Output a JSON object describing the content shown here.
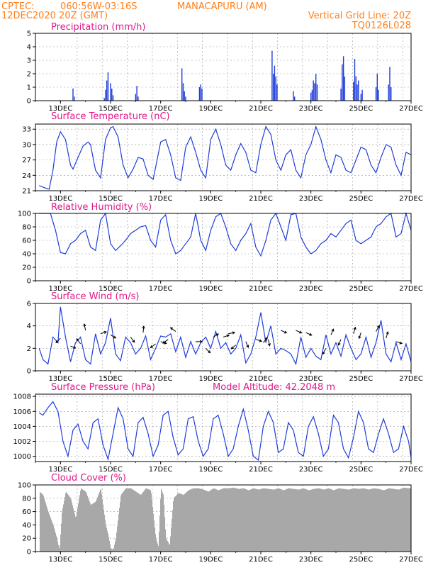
{
  "header": {
    "line1_left": "CPTEC:",
    "line1_coords": "060:56W-03:16S",
    "line1_place": "MANACAPURU (AM)",
    "line2_left": "12DEC2020 20Z (GMT)",
    "line1_right": "Vertical Grid Line: 20Z",
    "line2_right": "TQ0126L028"
  },
  "x_tick_labels": [
    "13DEC",
    "15DEC",
    "17DEC",
    "19DEC",
    "21DEC",
    "23DEC",
    "25DEC",
    "27DEC"
  ],
  "colors": {
    "line": "#1f3ddb",
    "bar": "#1f3ddb",
    "cloud": "#a8a8a8",
    "title": "#e0198b",
    "header": "#ff7f1a"
  },
  "chart_data": [
    {
      "type": "bar",
      "id": "precip",
      "title": "Precipitation (mm/h)",
      "ylim": [
        0,
        5
      ],
      "yticks": [
        "0",
        "1",
        "2",
        "3",
        "4",
        "5"
      ],
      "x": [
        13.5,
        13.55,
        14.75,
        14.8,
        14.85,
        14.9,
        15.0,
        15.05,
        15.1,
        16.0,
        16.05,
        16.1,
        17.85,
        17.9,
        17.95,
        18.0,
        18.55,
        18.6,
        18.65,
        21.45,
        21.5,
        21.55,
        21.6,
        21.65,
        22.3,
        22.35,
        23.0,
        23.05,
        23.1,
        23.15,
        23.2,
        23.25,
        24.2,
        24.25,
        24.3,
        24.35,
        24.7,
        24.75,
        24.8,
        24.85,
        24.9,
        25.0,
        25.05,
        25.6,
        25.65,
        25.7,
        26.1,
        26.15,
        26.2
      ],
      "values": [
        0.9,
        0.3,
        0.2,
        0.8,
        1.5,
        2.1,
        1.3,
        0.9,
        0.4,
        0.5,
        1.1,
        0.3,
        2.4,
        1.3,
        0.7,
        0.3,
        1.0,
        1.2,
        0.9,
        3.7,
        2.0,
        2.6,
        1.8,
        1.2,
        0.7,
        0.3,
        0.6,
        0.8,
        1.5,
        1.3,
        2.0,
        1.2,
        0.9,
        2.7,
        3.3,
        1.8,
        1.4,
        3.1,
        1.8,
        1.2,
        1.5,
        0.5,
        0.8,
        1.0,
        2.0,
        0.8,
        1.2,
        2.5,
        1.0
      ]
    },
    {
      "type": "line",
      "id": "temp",
      "title": "Surface Temperature (nC)",
      "ylim": [
        21,
        34
      ],
      "yticks": [
        "21",
        "24",
        "27",
        "30",
        "33"
      ],
      "x": [
        12.15,
        12.35,
        12.55,
        12.7,
        12.85,
        13.0,
        13.2,
        13.4,
        13.5,
        13.7,
        13.9,
        14.1,
        14.2,
        14.4,
        14.6,
        14.8,
        15.0,
        15.1,
        15.3,
        15.5,
        15.7,
        15.9,
        16.1,
        16.3,
        16.5,
        16.7,
        16.9,
        17.0,
        17.2,
        17.4,
        17.6,
        17.8,
        18.0,
        18.2,
        18.4,
        18.6,
        18.8,
        19.0,
        19.2,
        19.4,
        19.6,
        19.8,
        20.0,
        20.2,
        20.4,
        20.6,
        20.8,
        21.0,
        21.2,
        21.4,
        21.6,
        21.8,
        22.0,
        22.2,
        22.4,
        22.6,
        22.8,
        23.0,
        23.2,
        23.4,
        23.6,
        23.8,
        24.0,
        24.2,
        24.4,
        24.6,
        24.8,
        25.0,
        25.2,
        25.4,
        25.6,
        25.8,
        26.0,
        26.2,
        26.4,
        26.6,
        26.8,
        27.0
      ],
      "values": [
        22.0,
        21.6,
        21.3,
        25.0,
        30.5,
        32.5,
        31.0,
        26.0,
        25.2,
        27.5,
        29.7,
        30.5,
        30.0,
        25.0,
        23.5,
        31.0,
        33.3,
        33.5,
        31.5,
        26.0,
        23.5,
        25.2,
        27.5,
        27.2,
        24.0,
        23.2,
        28.0,
        30.5,
        31.0,
        28.0,
        23.5,
        23.0,
        29.5,
        31.5,
        28.5,
        25.0,
        23.5,
        31.0,
        33.0,
        30.0,
        26.0,
        25.0,
        28.0,
        30.2,
        28.5,
        25.0,
        24.5,
        30.0,
        33.5,
        32.0,
        27.0,
        25.0,
        28.0,
        29.0,
        25.0,
        23.5,
        28.0,
        30.0,
        33.5,
        31.0,
        27.0,
        24.5,
        28.0,
        27.5,
        25.0,
        24.5,
        27.0,
        29.5,
        29.0,
        26.0,
        24.5,
        27.5,
        30.0,
        29.5,
        26.0,
        24.0,
        28.5,
        28.0
      ]
    },
    {
      "type": "line",
      "id": "rh",
      "title": "Relative Humidity (%)",
      "ylim": [
        0,
        100
      ],
      "yticks": [
        "0",
        "20",
        "40",
        "60",
        "80",
        "100"
      ],
      "x": [
        12.15,
        12.4,
        12.6,
        12.8,
        13.0,
        13.2,
        13.4,
        13.6,
        13.8,
        14.0,
        14.2,
        14.4,
        14.6,
        14.8,
        15.0,
        15.2,
        15.4,
        15.6,
        15.8,
        16.0,
        16.2,
        16.4,
        16.6,
        16.8,
        17.0,
        17.2,
        17.4,
        17.6,
        17.8,
        18.0,
        18.2,
        18.4,
        18.6,
        18.8,
        19.0,
        19.2,
        19.4,
        19.6,
        19.8,
        20.0,
        20.2,
        20.4,
        20.6,
        20.8,
        21.0,
        21.2,
        21.4,
        21.6,
        21.8,
        22.0,
        22.2,
        22.4,
        22.6,
        22.8,
        23.0,
        23.2,
        23.4,
        23.6,
        23.8,
        24.0,
        24.2,
        24.4,
        24.6,
        24.8,
        25.0,
        25.2,
        25.4,
        25.6,
        25.8,
        26.0,
        26.2,
        26.4,
        26.6,
        26.8,
        27.0
      ],
      "values": [
        100,
        100,
        100,
        75,
        42,
        40,
        55,
        60,
        70,
        75,
        50,
        45,
        90,
        100,
        55,
        45,
        52,
        60,
        70,
        75,
        80,
        82,
        60,
        50,
        90,
        98,
        60,
        40,
        45,
        55,
        65,
        100,
        60,
        45,
        75,
        95,
        100,
        80,
        55,
        45,
        60,
        70,
        85,
        50,
        37,
        60,
        90,
        100,
        80,
        60,
        98,
        100,
        65,
        50,
        40,
        45,
        55,
        60,
        70,
        65,
        75,
        85,
        90,
        60,
        55,
        60,
        65,
        80,
        85,
        95,
        100,
        65,
        70,
        100,
        75
      ]
    },
    {
      "type": "line",
      "id": "wind",
      "title": "Surface Wind (m/s)",
      "ylim": [
        0,
        6
      ],
      "yticks": [
        "0",
        "2",
        "4",
        "6"
      ],
      "x": [
        12.15,
        12.3,
        12.5,
        12.7,
        12.9,
        13.0,
        13.2,
        13.4,
        13.6,
        13.8,
        14.0,
        14.2,
        14.4,
        14.6,
        14.8,
        15.0,
        15.2,
        15.4,
        15.6,
        15.8,
        16.0,
        16.2,
        16.4,
        16.6,
        16.8,
        17.0,
        17.2,
        17.4,
        17.6,
        17.8,
        18.0,
        18.2,
        18.4,
        18.6,
        18.8,
        19.0,
        19.2,
        19.4,
        19.6,
        19.8,
        20.0,
        20.2,
        20.4,
        20.6,
        20.8,
        21.0,
        21.2,
        21.4,
        21.6,
        21.8,
        22.0,
        22.2,
        22.4,
        22.6,
        22.8,
        23.0,
        23.2,
        23.4,
        23.6,
        23.8,
        24.0,
        24.2,
        24.4,
        24.6,
        24.8,
        25.0,
        25.2,
        25.4,
        25.6,
        25.8,
        26.0,
        26.2,
        26.4,
        26.6,
        26.8,
        27.0
      ],
      "values": [
        2.0,
        1.0,
        0.6,
        3.0,
        2.5,
        5.7,
        3.0,
        0.8,
        2.5,
        3.0,
        1.0,
        0.6,
        3.3,
        1.5,
        2.5,
        4.7,
        1.5,
        0.9,
        3.0,
        2.5,
        1.5,
        2.0,
        3.1,
        1.0,
        2.0,
        3.1,
        3.0,
        3.3,
        1.7,
        3.0,
        1.2,
        2.6,
        1.5,
        2.5,
        3.0,
        2.0,
        3.5,
        2.0,
        2.5,
        1.5,
        2.0,
        3.2,
        0.7,
        1.5,
        3.0,
        5.2,
        2.5,
        4.0,
        1.5,
        2.0,
        1.8,
        1.5,
        0.6,
        3.0,
        1.2,
        2.0,
        1.3,
        1.0,
        3.2,
        1.5,
        2.5,
        1.3,
        3.2,
        2.0,
        1.0,
        1.5,
        3.0,
        1.2,
        2.5,
        4.5,
        1.5,
        0.8,
        2.5,
        1.0,
        2.4,
        0.8
      ]
    },
    {
      "type": "line",
      "id": "pressure",
      "title": "Surface Pressure (hPa)",
      "annotation": "Model Altitude: 42.2048 m",
      "ylim": [
        999.3,
        1008.3
      ],
      "yticks": [
        "1000",
        "1002",
        "1004",
        "1006",
        "1008"
      ],
      "x": [
        12.15,
        12.3,
        12.5,
        12.7,
        12.9,
        13.1,
        13.3,
        13.5,
        13.7,
        13.9,
        14.1,
        14.3,
        14.5,
        14.7,
        14.9,
        15.1,
        15.3,
        15.5,
        15.7,
        15.9,
        16.1,
        16.3,
        16.5,
        16.7,
        16.9,
        17.1,
        17.3,
        17.5,
        17.7,
        17.9,
        18.1,
        18.3,
        18.5,
        18.7,
        18.9,
        19.1,
        19.3,
        19.5,
        19.7,
        19.9,
        20.1,
        20.3,
        20.5,
        20.7,
        20.9,
        21.1,
        21.3,
        21.5,
        21.7,
        21.9,
        22.1,
        22.3,
        22.5,
        22.7,
        22.9,
        23.1,
        23.3,
        23.5,
        23.7,
        23.9,
        24.1,
        24.3,
        24.5,
        24.7,
        24.9,
        25.1,
        25.3,
        25.5,
        25.7,
        25.9,
        26.1,
        26.3,
        26.5,
        26.7,
        26.9,
        27.0
      ],
      "values": [
        1005.8,
        1005.5,
        1006.5,
        1007.3,
        1006.0,
        1002.0,
        1000.0,
        1003.5,
        1004.3,
        1002.0,
        1001.0,
        1004.5,
        1005.0,
        1001.5,
        999.6,
        1003.0,
        1006.5,
        1005.0,
        1001.0,
        1000.0,
        1004.5,
        1005.2,
        1003.0,
        1000.0,
        1001.5,
        1005.5,
        1006.0,
        1002.5,
        1000.2,
        1001.0,
        1005.0,
        1005.3,
        1002.0,
        1000.0,
        1001.0,
        1005.0,
        1005.5,
        1003.0,
        1000.0,
        1001.0,
        1004.0,
        1006.3,
        1003.5,
        1000.0,
        999.5,
        1004.0,
        1006.0,
        1004.5,
        1000.5,
        1001.0,
        1004.5,
        1003.5,
        1000.5,
        1000.0,
        1004.0,
        1005.3,
        1003.0,
        1000.0,
        1001.0,
        1005.5,
        1004.5,
        1001.0,
        999.8,
        1002.5,
        1006.0,
        1004.5,
        1001.0,
        1000.5,
        1003.0,
        1005.0,
        1003.0,
        1000.5,
        1001.0,
        1004.0,
        1002.0,
        999.8
      ]
    },
    {
      "type": "area",
      "id": "cloud",
      "title": "Cloud Cover (%)",
      "ylim": [
        0,
        100
      ],
      "yticks": [
        "0",
        "20",
        "40",
        "60",
        "80",
        "100"
      ],
      "x": [
        12.15,
        12.3,
        12.5,
        12.7,
        12.85,
        12.95,
        13.05,
        13.2,
        13.4,
        13.6,
        13.8,
        14.0,
        14.2,
        14.4,
        14.6,
        14.8,
        14.9,
        15.0,
        15.1,
        15.2,
        15.4,
        15.6,
        15.8,
        16.0,
        16.2,
        16.4,
        16.6,
        16.8,
        16.9,
        17.0,
        17.1,
        17.2,
        17.35,
        17.5,
        17.7,
        17.9,
        18.1,
        18.3,
        18.5,
        18.7,
        18.9,
        19.1,
        19.3,
        19.5,
        19.7,
        19.9,
        20.1,
        20.3,
        20.5,
        20.7,
        20.9,
        21.1,
        21.3,
        21.5,
        21.7,
        21.9,
        22.1,
        22.3,
        22.5,
        22.7,
        22.9,
        23.1,
        23.3,
        23.5,
        23.7,
        23.9,
        24.1,
        24.3,
        24.5,
        24.7,
        24.9,
        25.1,
        25.3,
        25.5,
        25.7,
        25.9,
        26.1,
        26.3,
        26.5,
        26.7,
        26.9,
        27.0
      ],
      "values": [
        90,
        85,
        60,
        40,
        20,
        2,
        60,
        90,
        80,
        50,
        95,
        90,
        70,
        75,
        95,
        40,
        25,
        5,
        3,
        20,
        85,
        95,
        95,
        90,
        85,
        95,
        92,
        20,
        8,
        95,
        85,
        20,
        10,
        80,
        88,
        85,
        92,
        95,
        95,
        93,
        90,
        95,
        92,
        95,
        95,
        96,
        94,
        95,
        92,
        95,
        93,
        95,
        94,
        93,
        95,
        92,
        95,
        94,
        93,
        95,
        92,
        94,
        95,
        93,
        95,
        92,
        95,
        94,
        93,
        95,
        94,
        95,
        93,
        95,
        94,
        92,
        95,
        94,
        93,
        96,
        95,
        95
      ]
    }
  ]
}
